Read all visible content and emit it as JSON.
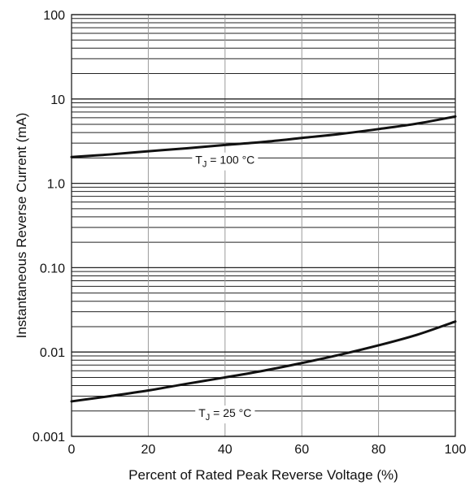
{
  "chart_data": {
    "type": "line",
    "xlabel": "Percent of Rated Peak Reverse Voltage (%)",
    "ylabel": "Instantaneous Reverse Current (mA)",
    "xlim": [
      0,
      100
    ],
    "ylim": [
      0.001,
      100
    ],
    "yscale": "log",
    "grid": true,
    "x_ticks": [
      0,
      20,
      40,
      60,
      80,
      100
    ],
    "x_tick_labels": [
      "0",
      "20",
      "40",
      "60",
      "80",
      "100"
    ],
    "y_ticks": [
      0.001,
      0.01,
      0.1,
      1,
      10,
      100
    ],
    "y_tick_labels": [
      "0.001",
      "0.01",
      "0.10",
      "1.0",
      "10",
      "100"
    ],
    "series": [
      {
        "label_main": "T",
        "label_sub": "J",
        "label_rest": " = 100 °C",
        "label_pos": [
          40,
          1.9
        ],
        "x": [
          0,
          10,
          20,
          30,
          40,
          50,
          60,
          70,
          80,
          90,
          100
        ],
        "y": [
          2.05,
          2.2,
          2.4,
          2.6,
          2.85,
          3.1,
          3.45,
          3.85,
          4.4,
          5.1,
          6.2
        ]
      },
      {
        "label_main": "T",
        "label_sub": "J",
        "label_rest": " = 25 °C",
        "label_pos": [
          40,
          0.0019
        ],
        "x": [
          0,
          10,
          20,
          30,
          40,
          50,
          60,
          70,
          80,
          90,
          100
        ],
        "y": [
          0.0026,
          0.003,
          0.0035,
          0.0042,
          0.005,
          0.006,
          0.0074,
          0.0093,
          0.012,
          0.016,
          0.023
        ]
      }
    ]
  }
}
